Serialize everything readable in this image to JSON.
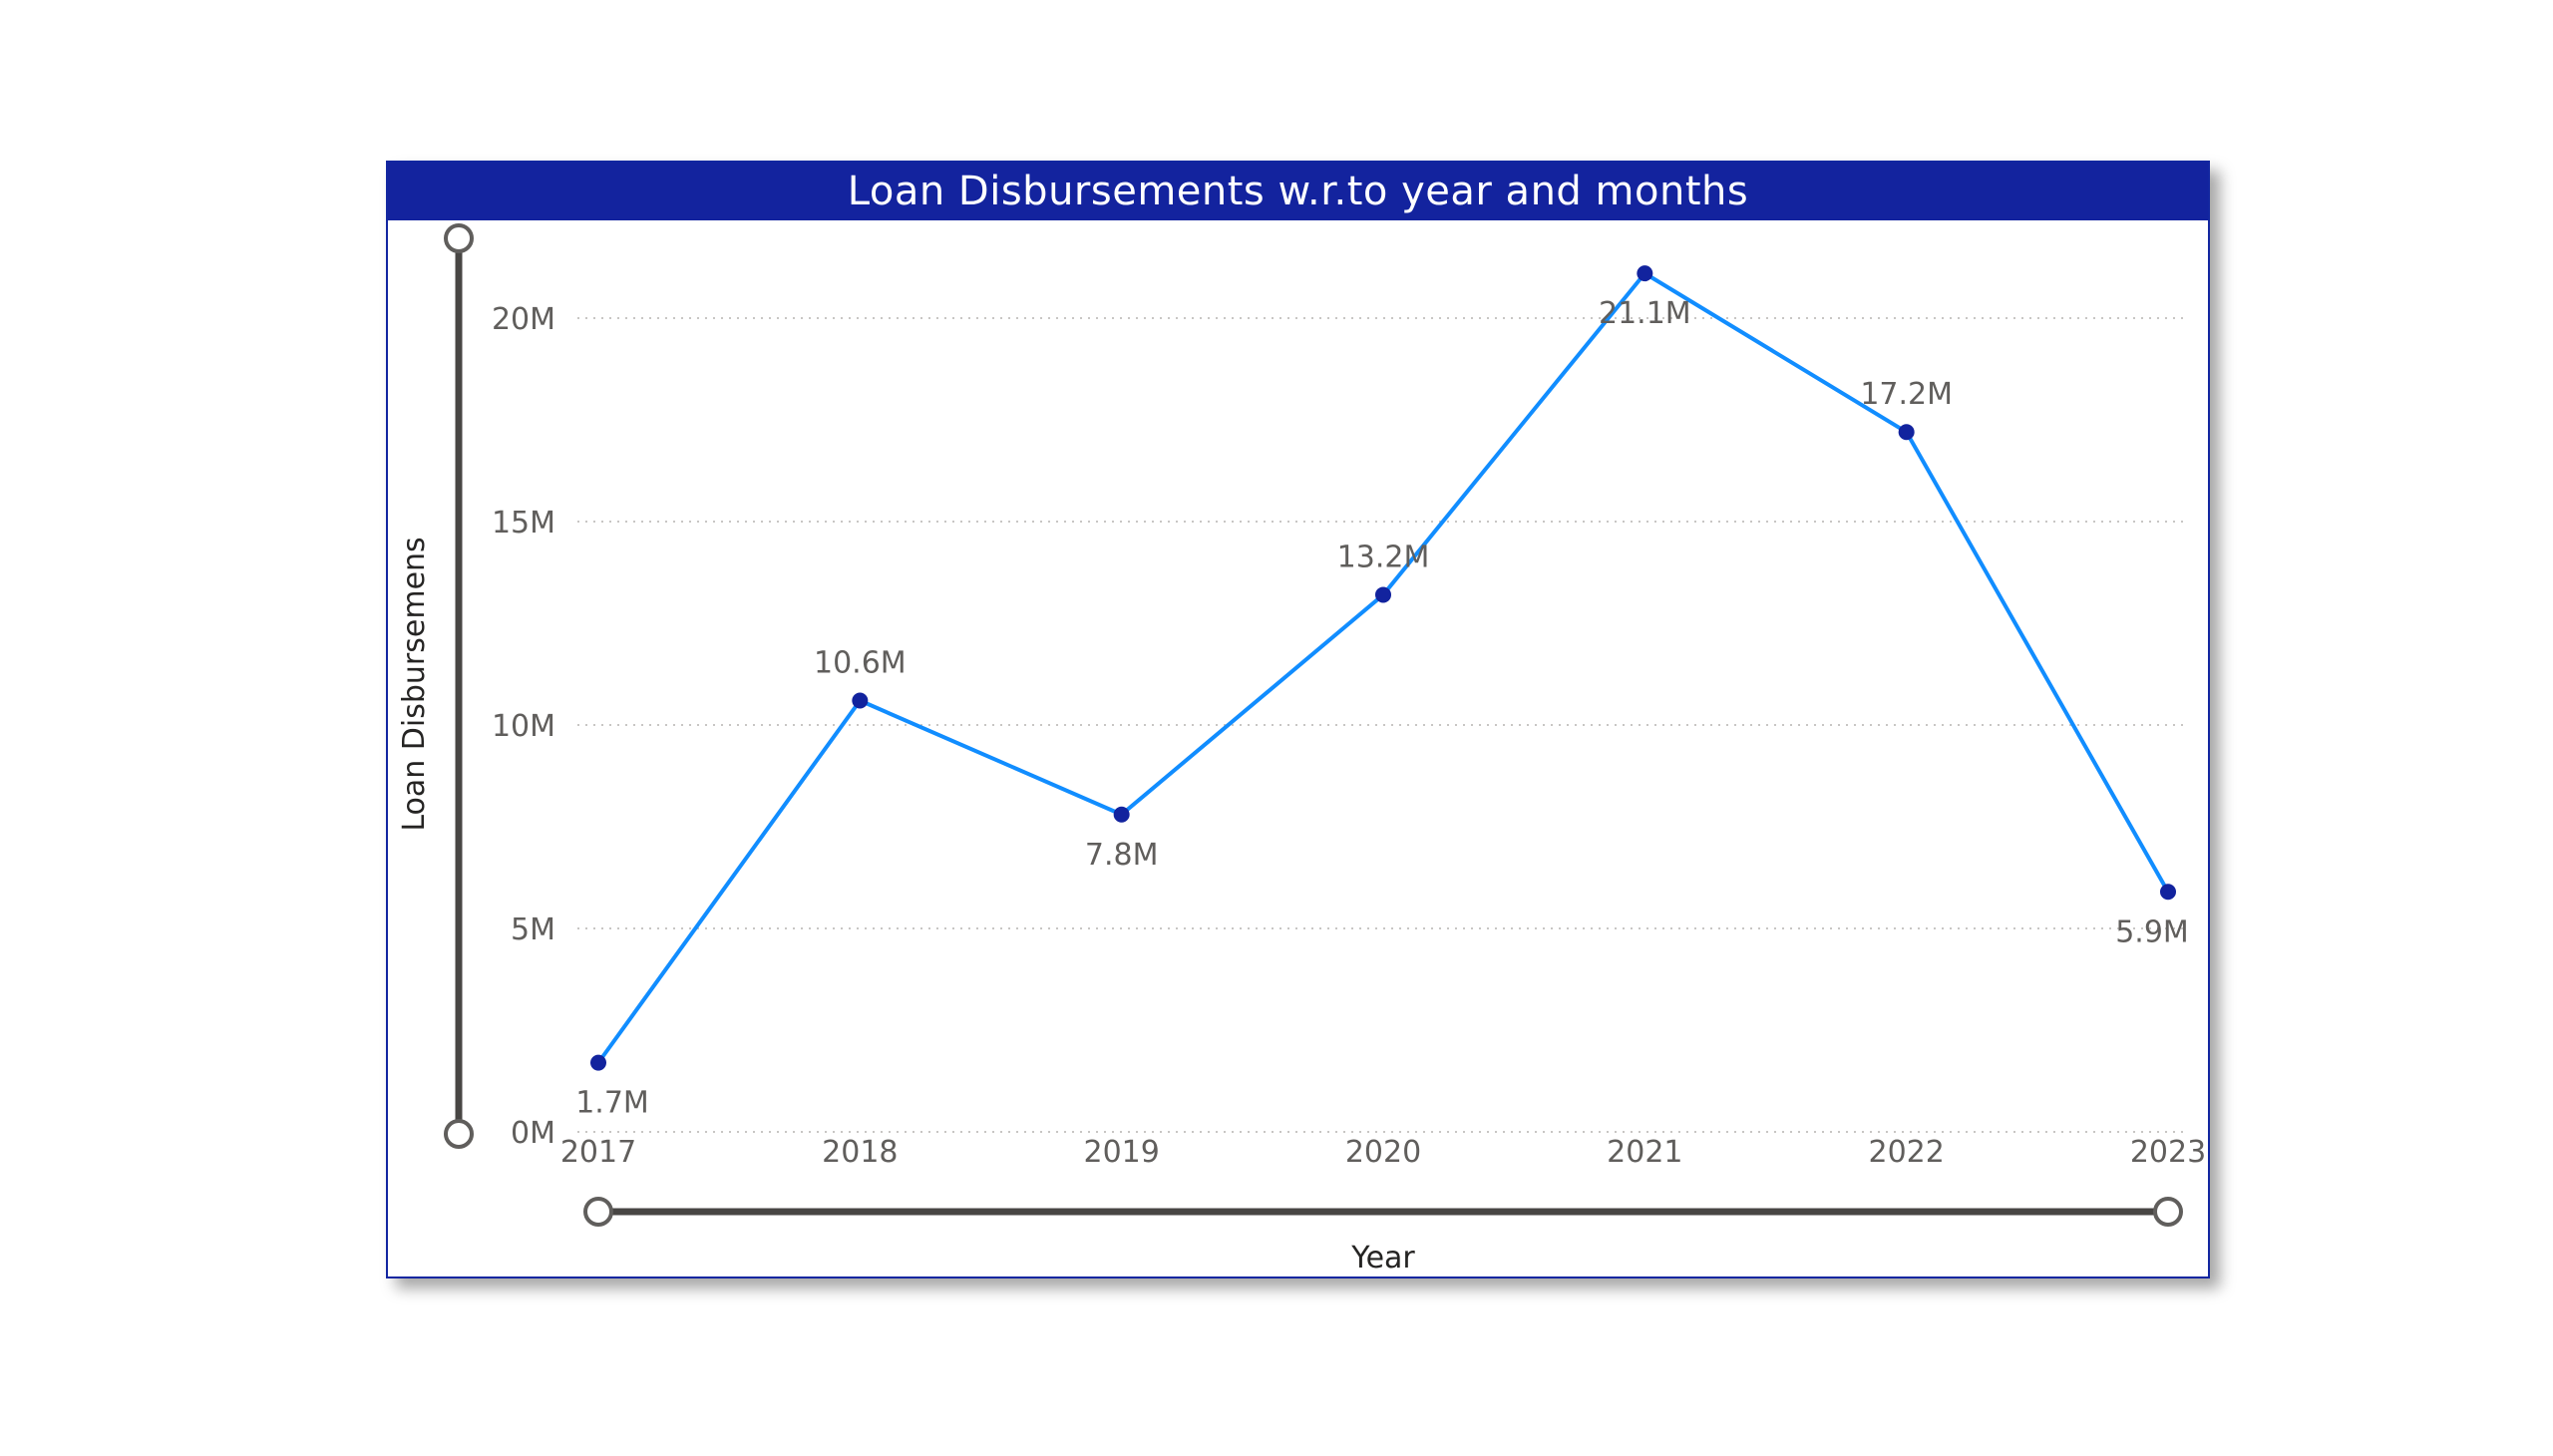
{
  "chart_data": {
    "type": "line",
    "title": "Loan Disbursements w.r.to year and months",
    "xlabel": "Year",
    "ylabel": "Loan Disbursemens",
    "categories": [
      "2017",
      "2018",
      "2019",
      "2020",
      "2021",
      "2022",
      "2023"
    ],
    "series": [
      {
        "values": [
          1.7,
          10.6,
          7.8,
          13.2,
          21.1,
          17.2,
          5.9
        ],
        "labels": [
          "1.7M",
          "10.6M",
          "7.8M",
          "13.2M",
          "21.1M",
          "17.2M",
          "5.9M"
        ],
        "line_color": "#118dff",
        "marker_color": "#12239e"
      }
    ],
    "yticks": [
      {
        "value": 0,
        "label": "0M"
      },
      {
        "value": 5,
        "label": "5M"
      },
      {
        "value": 10,
        "label": "10M"
      },
      {
        "value": 15,
        "label": "15M"
      },
      {
        "value": 20,
        "label": "20M"
      }
    ],
    "ylim": [
      0,
      22
    ],
    "units": "millions",
    "grid": true,
    "legend": "none",
    "zoom_sliders": {
      "x_range": [
        0,
        1
      ],
      "y_range": [
        0,
        1
      ]
    }
  },
  "colors": {
    "title_bar": "#13239e",
    "title_text": "#ffffff",
    "border": "#1226a0",
    "line": "#118dff",
    "marker": "#12239e",
    "gridline": "#c8c6c4",
    "slider": "#484644"
  }
}
